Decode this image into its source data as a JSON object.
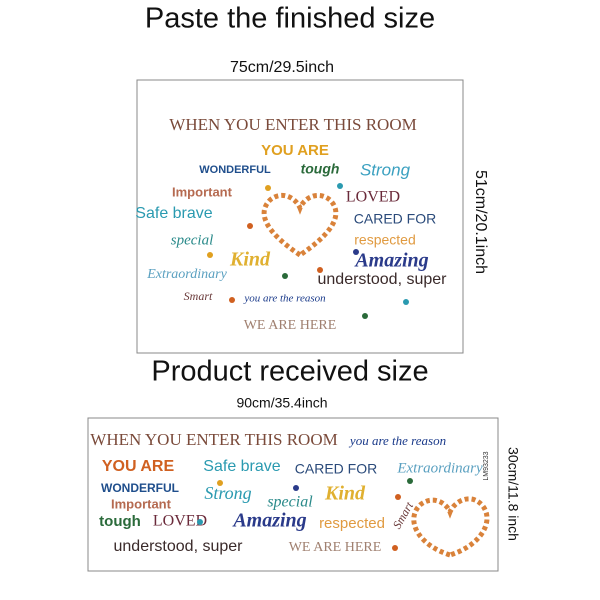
{
  "headings": {
    "finished": "Paste the finished size",
    "received": "Product received size"
  },
  "finished": {
    "width": "75cm/29.5inch",
    "height": "51cm/20.1inch",
    "words": [
      "WHEN YOU ENTER THIS ROOM",
      "YOU ARE",
      "WONDERFUL",
      "tough",
      "Strong",
      "Important",
      "LOVED",
      "Safe brave",
      "CARED FOR",
      "special",
      "respected",
      "Kind",
      "Amazing",
      "Extraordinary",
      "understood, super",
      "Smart",
      "you are the reason",
      "WE ARE HERE"
    ]
  },
  "received": {
    "width": "90cm/35.4inch",
    "height": "30cm/11.8 inch",
    "code": "LM93233",
    "words": [
      "WHEN YOU ENTER THIS ROOM",
      "you are the reason",
      "YOU ARE",
      "Safe brave",
      "CARED FOR",
      "Extraordinary",
      "WONDERFUL",
      "Strong",
      "Kind",
      "Important",
      "special",
      "tough",
      "LOVED",
      "Amazing",
      "respected",
      "Smart",
      "understood, super",
      "WE ARE HERE"
    ]
  }
}
